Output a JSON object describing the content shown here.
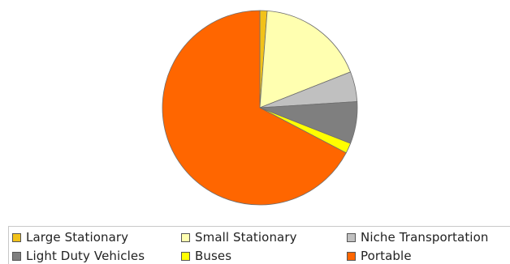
{
  "chart_data": {
    "type": "pie",
    "title": "",
    "legend_position": "bottom",
    "slices": [
      {
        "name": "Large Stationary",
        "value": 1.2,
        "color": "#f2c21a"
      },
      {
        "name": "Small Stationary",
        "value": 17.8,
        "color": "#ffffb0"
      },
      {
        "name": "Niche Transportation",
        "value": 5.0,
        "color": "#c0c0c0"
      },
      {
        "name": "Light Duty Vehicles",
        "value": 7.0,
        "color": "#7f7f7f"
      },
      {
        "name": "Buses",
        "value": 1.7,
        "color": "#ffff00"
      },
      {
        "name": "Portable",
        "value": 67.3,
        "color": "#ff6600"
      }
    ]
  },
  "legend": {
    "items": [
      {
        "label": "Large Stationary",
        "color": "#f2c21a"
      },
      {
        "label": "Small Stationary",
        "color": "#ffffb0"
      },
      {
        "label": "Niche Transportation",
        "color": "#c0c0c0"
      },
      {
        "label": "Light Duty Vehicles",
        "color": "#7f7f7f"
      },
      {
        "label": "Buses",
        "color": "#ffff00"
      },
      {
        "label": "Portable",
        "color": "#ff6600"
      }
    ]
  }
}
